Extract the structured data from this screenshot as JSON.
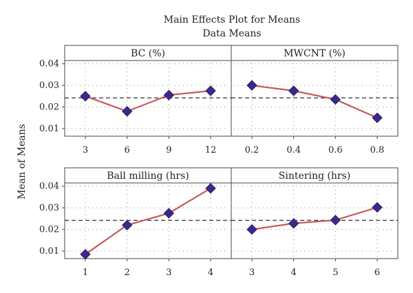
{
  "header": {
    "title": "Main Effects Plot for Means",
    "subtitle": "Data Means",
    "ylabel": "Mean of Means"
  },
  "chart_data": {
    "type": "line",
    "title": "Main Effects Plot for Means",
    "subtitle": "Data Means",
    "ylabel": "Mean of Means",
    "ylim": [
      0.0065,
      0.0415
    ],
    "yticks": [
      0.01,
      0.02,
      0.03,
      0.04
    ],
    "ytick_labels": [
      "0.01",
      "0.02",
      "0.03",
      "0.04"
    ],
    "overall_mean": 0.0242,
    "grid": "dotted",
    "colors": {
      "line": "#c8585c",
      "marker": "#3b2a8a",
      "mean_line": "#333333"
    },
    "panels": [
      {
        "name": "BC (%)",
        "categories": [
          "3",
          "6",
          "9",
          "12"
        ],
        "values": [
          0.025,
          0.018,
          0.0255,
          0.0275
        ]
      },
      {
        "name": "MWCNT (%)",
        "categories": [
          "0.2",
          "0.4",
          "0.6",
          "0.8"
        ],
        "values": [
          0.03,
          0.0275,
          0.0235,
          0.015
        ]
      },
      {
        "name": "Ball milling (hrs)",
        "categories": [
          "1",
          "2",
          "3",
          "4"
        ],
        "values": [
          0.0085,
          0.022,
          0.0275,
          0.039
        ]
      },
      {
        "name": "Sintering (hrs)",
        "categories": [
          "3",
          "4",
          "5",
          "6"
        ],
        "values": [
          0.02,
          0.0228,
          0.0243,
          0.0302
        ]
      }
    ]
  }
}
